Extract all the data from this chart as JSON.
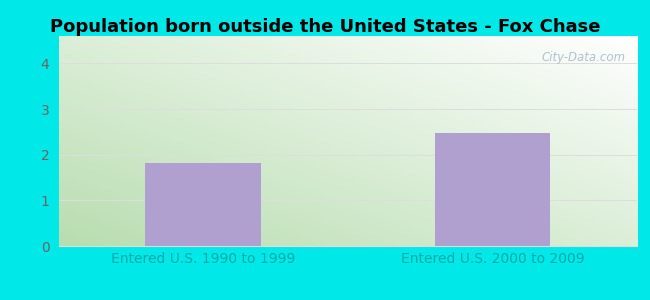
{
  "title": "Population born outside the United States - Fox Chase",
  "categories": [
    "Entered U.S. 1990 to 1999",
    "Entered U.S. 2000 to 2009"
  ],
  "values": [
    1.82,
    2.48
  ],
  "bar_color": "#b0a0d0",
  "bar_positions": [
    0.25,
    0.75
  ],
  "bar_width": 0.2,
  "ylim": [
    0,
    4.6
  ],
  "yticks": [
    0,
    1,
    2,
    3,
    4
  ],
  "outer_bg": "#00e8e8",
  "plot_bg_topleft": "#b8ddb0",
  "plot_bg_bottomright": "#ffffff",
  "xlabel_color": "#00aaaa",
  "tick_color": "#666666",
  "title_color": "#000000",
  "grid_color": "#dddddd",
  "watermark_text": "City-Data.com",
  "watermark_color": "#aabbcc",
  "title_fontsize": 13,
  "tick_label_fontsize": 10,
  "xlabel_fontsize": 10
}
